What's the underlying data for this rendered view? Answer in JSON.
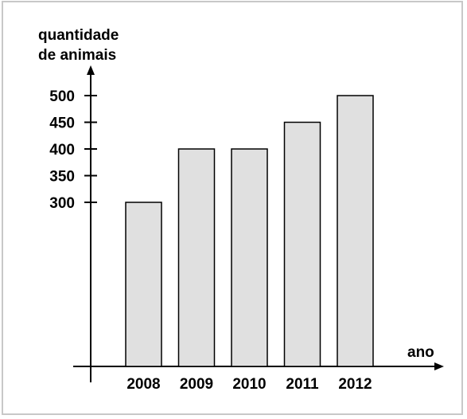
{
  "chart_data": {
    "type": "bar",
    "ylabel_lines": [
      "quantidade",
      "de animais"
    ],
    "xlabel": "ano",
    "categories": [
      "2008",
      "2009",
      "2010",
      "2011",
      "2012"
    ],
    "values": [
      300,
      400,
      400,
      450,
      500
    ],
    "yticks": [
      300,
      350,
      400,
      450,
      500
    ],
    "bar_color": "#e0e0e0",
    "bar_stroke": "#000000",
    "axis_color": "#000000",
    "grid": false,
    "legend": "none"
  }
}
